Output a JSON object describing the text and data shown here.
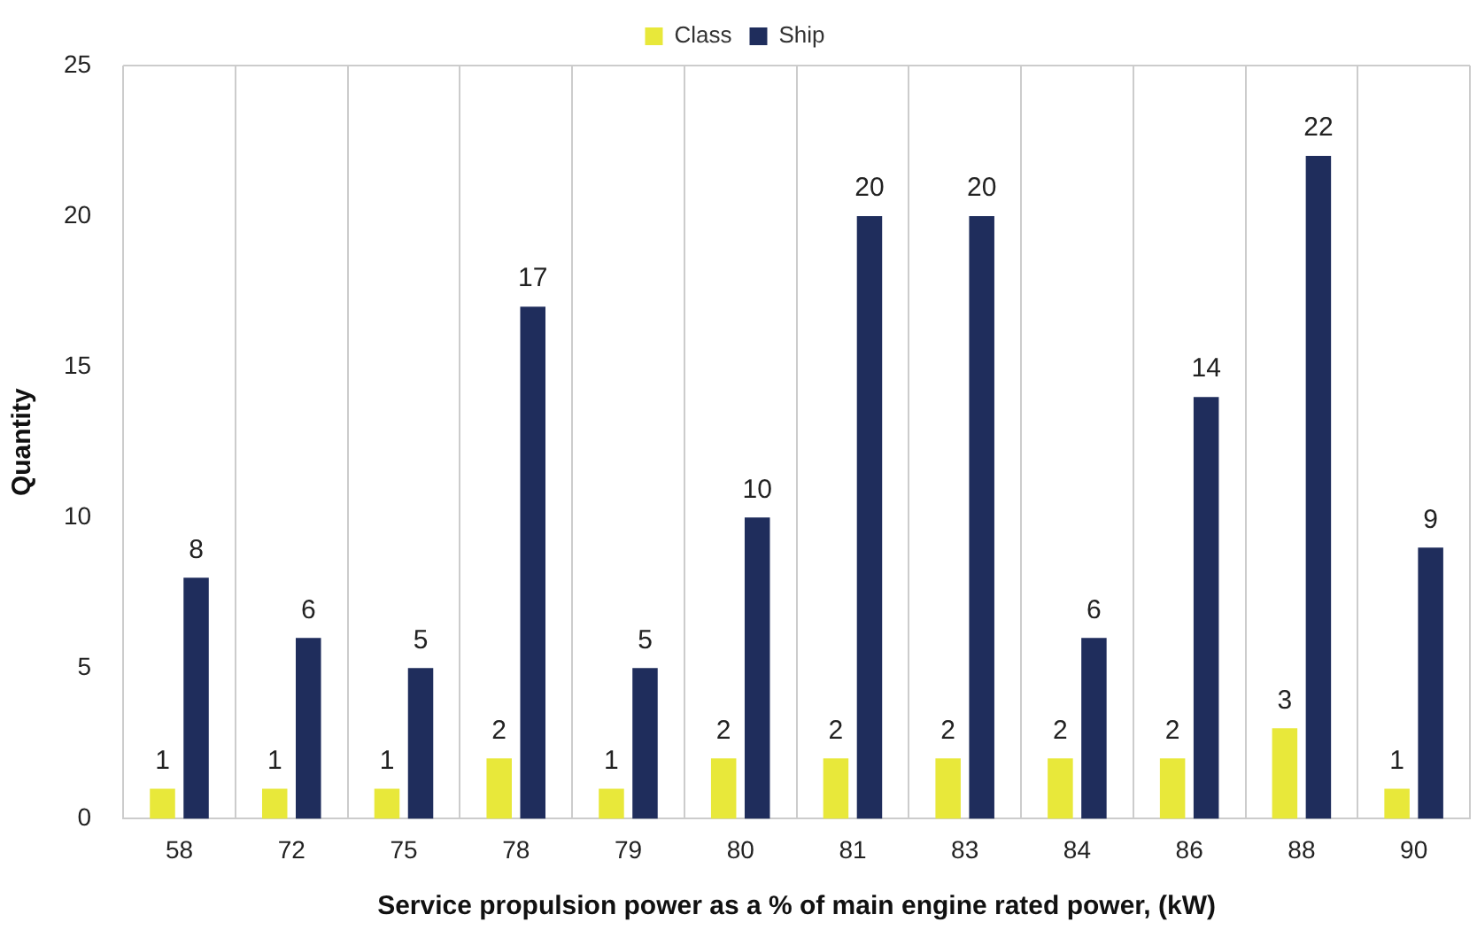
{
  "chart_data": {
    "type": "bar",
    "xlabel": "Service propulsion power as a % of main engine rated power, (kW)",
    "ylabel": "Quantity",
    "categories": [
      "58",
      "72",
      "75",
      "78",
      "79",
      "80",
      "81",
      "83",
      "84",
      "86",
      "88",
      "90"
    ],
    "series": [
      {
        "name": "Class",
        "color": "#e8e83a",
        "values": [
          1,
          1,
          1,
          2,
          1,
          2,
          2,
          2,
          2,
          2,
          3,
          1
        ]
      },
      {
        "name": "Ship",
        "color": "#1f2d5c",
        "values": [
          8,
          6,
          5,
          17,
          5,
          10,
          20,
          20,
          6,
          14,
          22,
          9
        ]
      }
    ],
    "ylim": [
      0,
      25
    ],
    "yticks": [
      0,
      5,
      10,
      15,
      20,
      25
    ],
    "grid": "x",
    "legend": "top",
    "data_labels": true
  }
}
